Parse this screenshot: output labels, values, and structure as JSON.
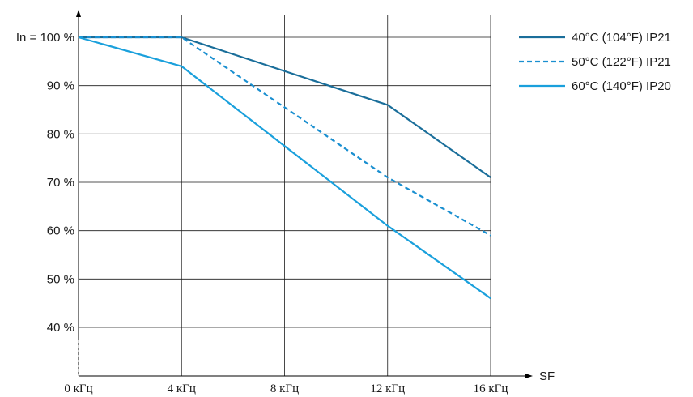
{
  "chart_data": {
    "type": "line",
    "xlabel": "SF",
    "ylabel": "",
    "x": [
      0,
      4,
      8,
      12,
      16
    ],
    "xlim": [
      0,
      16
    ],
    "ylim": [
      35,
      100
    ],
    "x_tick_labels": [
      "0 кГц",
      "4 кГц",
      "8 кГц",
      "12 кГц",
      "16 кГц"
    ],
    "y_ticks": [
      40,
      50,
      60,
      70,
      80,
      90,
      100
    ],
    "y_tick_labels": [
      "40 %",
      "50 %",
      "60 %",
      "70 %",
      "80 %",
      "90 %",
      "In = 100 %"
    ],
    "grid": true,
    "legend_position": "top-right",
    "series": [
      {
        "name": "40°C (104°F) IP21",
        "x": [
          0,
          4,
          12,
          16
        ],
        "values": [
          100,
          100,
          86,
          71
        ],
        "color": "#1a6e9a",
        "style": "solid"
      },
      {
        "name": "50°C (122°F) IP21",
        "x": [
          0,
          4,
          12,
          16
        ],
        "values": [
          100,
          100,
          71,
          59
        ],
        "color": "#1a8fd0",
        "style": "dashed"
      },
      {
        "name": "60°C (140°F) IP20",
        "x": [
          0,
          4,
          12,
          16
        ],
        "values": [
          100,
          94,
          61,
          46
        ],
        "color": "#1aa0dc",
        "style": "solid"
      }
    ]
  }
}
